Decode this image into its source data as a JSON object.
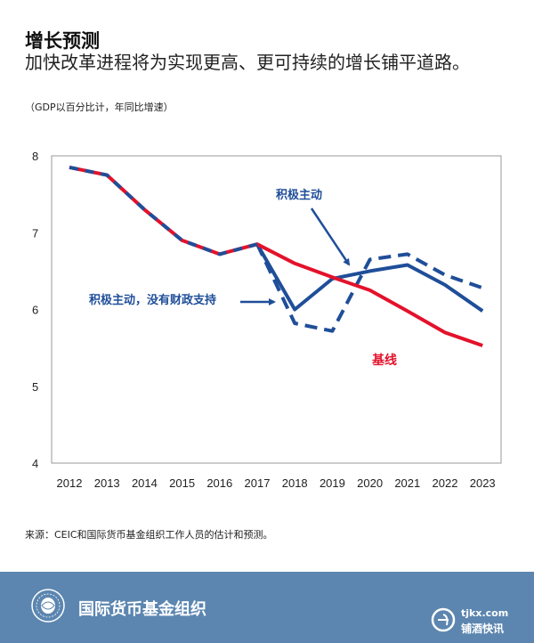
{
  "header": {
    "title": "增长预测",
    "subtitle": "加快改革进程将为实现更高、更可持续的增长铺平道路。",
    "unit_note": "（GDP以百分比计，年同比增速）"
  },
  "source_note": "来源：CEIC和国际货币基金组织工作人员的估计和预测。",
  "footer": {
    "org_name": "国际货币基金组织",
    "watermark_url": "tjkx.com",
    "watermark_name": "铺酒快讯"
  },
  "colors": {
    "baseline": "#e3122b",
    "reform": "#1f4e99",
    "footer_bg": "#5c86b0"
  },
  "chart_data": {
    "type": "line",
    "title": "增长预测",
    "x": [
      "2012",
      "2013",
      "2014",
      "2015",
      "2016",
      "2017",
      "2018",
      "2019",
      "2020",
      "2021",
      "2022",
      "2023"
    ],
    "ylim": [
      4,
      8
    ],
    "yticks": [
      4,
      5,
      6,
      7,
      8
    ],
    "grid": false,
    "series": [
      {
        "name": "基线",
        "values": [
          7.85,
          7.75,
          7.3,
          6.9,
          6.72,
          6.85,
          6.6,
          6.42,
          6.25,
          5.98,
          5.7,
          5.53
        ],
        "color": "#e3122b",
        "style": "solid"
      },
      {
        "name": "积极主动",
        "values": [
          null,
          null,
          null,
          null,
          null,
          6.85,
          6.0,
          6.4,
          6.5,
          6.58,
          6.32,
          5.98
        ],
        "color": "#1f4e99",
        "style": "solid"
      },
      {
        "name": "积极主动，没有财政支持",
        "values": [
          null,
          null,
          null,
          null,
          null,
          6.85,
          5.82,
          5.72,
          6.65,
          6.72,
          6.45,
          6.28
        ],
        "color": "#1f4e99",
        "style": "dashed"
      }
    ],
    "annotations": [
      {
        "text": "积极主动",
        "series": "积极主动",
        "color": "#1f4e99"
      },
      {
        "text": "积极主动，没有财政支持",
        "series": "积极主动，没有财政支持",
        "color": "#1f4e99"
      },
      {
        "text": "基线",
        "series": "基线",
        "color": "#e3122b"
      }
    ]
  }
}
